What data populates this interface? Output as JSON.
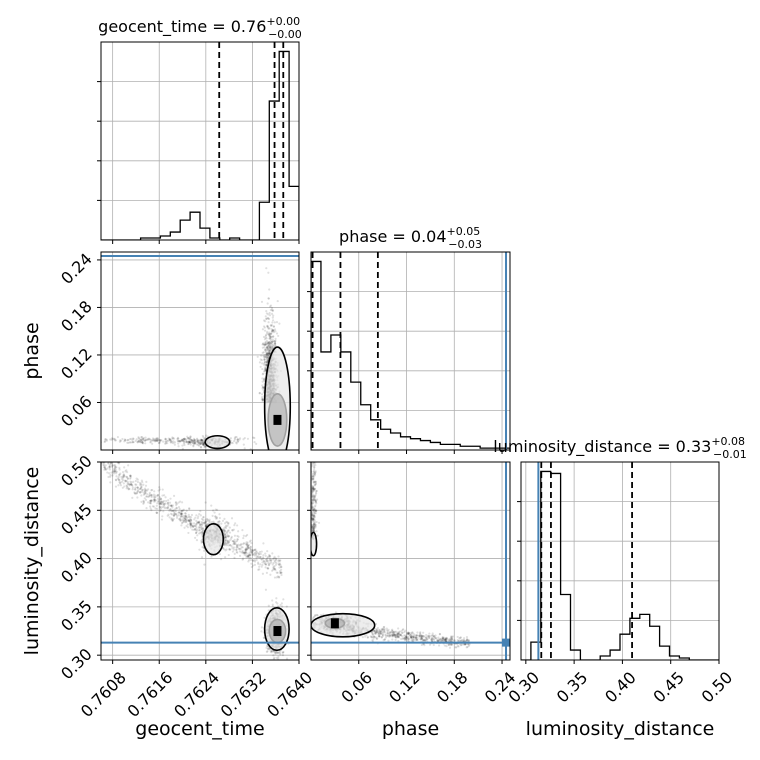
{
  "chart_data": {
    "type": "corner",
    "parameters": [
      {
        "name": "geocent_time",
        "range": [
          0.7606,
          0.764
        ],
        "ticks": [
          0.7608,
          0.7616,
          0.7624,
          0.7632,
          0.764
        ],
        "tick_labels": [
          "0.7608",
          "0.7616",
          "0.7624",
          "0.7632",
          "0.7640"
        ],
        "title": {
          "prefix": "geocent_time = ",
          "value": "0.76",
          "plus": "+0.00",
          "minus": "−0.00"
        },
        "quantiles": [
          0.76263,
          0.76358,
          0.76373
        ],
        "hist_edges_start": 0.7606,
        "hist_bin_width": 0.00017,
        "hist_counts": [
          0,
          0,
          0,
          0,
          1,
          1,
          2,
          4,
          10,
          14,
          6,
          1,
          0,
          1,
          0,
          0,
          19,
          70,
          95,
          27
        ]
      },
      {
        "name": "phase",
        "range": [
          0.0,
          0.25
        ],
        "ticks": [
          0.06,
          0.12,
          0.18,
          0.24
        ],
        "tick_labels": [
          "0.06",
          "0.12",
          "0.18",
          "0.24"
        ],
        "title": {
          "prefix": "phase = ",
          "value": "0.04",
          "plus": "+0.05",
          "minus": "−0.03"
        },
        "quantiles": [
          0.002,
          0.037,
          0.084
        ],
        "truth": 0.245,
        "hist_edges_start": 0.0,
        "hist_bin_width": 0.0125,
        "hist_counts": [
          100,
          52,
          61,
          52,
          36,
          24,
          16,
          11,
          9,
          7,
          6,
          5,
          4,
          3,
          3,
          2,
          2,
          1,
          1,
          1
        ]
      },
      {
        "name": "luminosity_distance",
        "range": [
          0.295,
          0.5
        ],
        "ticks": [
          0.3,
          0.35,
          0.4,
          0.45,
          0.5
        ],
        "tick_labels": [
          "0.30",
          "0.35",
          "0.40",
          "0.45",
          "0.50"
        ],
        "title": {
          "prefix": "luminosity_distance = ",
          "value": "0.33",
          "plus": "+0.08",
          "minus": "−0.01"
        },
        "quantiles": [
          0.316,
          0.326,
          0.41
        ],
        "truth": 0.313,
        "hist_edges_start": 0.295,
        "hist_bin_width": 0.01025,
        "hist_counts": [
          0,
          9,
          95,
          94,
          33,
          5,
          0,
          0,
          2,
          5,
          13,
          21,
          23,
          17,
          7,
          2,
          1,
          0,
          0,
          0
        ]
      }
    ],
    "scatter_2d": [
      {
        "x": "geocent_time",
        "y": "phase",
        "clusters": [
          {
            "cx": 0.7635,
            "cy": 0.06,
            "sx": 6e-05,
            "sy": 0.05,
            "n": 900
          },
          {
            "cx": 0.76245,
            "cy": 0.01,
            "sx": 0.0003,
            "sy": 0.003,
            "n": 250
          },
          {
            "cx": 0.7615,
            "cy": 0.012,
            "sx": 0.0006,
            "sy": 0.002,
            "n": 200
          }
        ],
        "contours": [
          {
            "cx": 0.76363,
            "cy": 0.038,
            "rx": 0.00016,
            "ry": 0.033
          },
          {
            "cx": 0.76363,
            "cy": 0.055,
            "rx": 0.00022,
            "ry": 0.075
          },
          {
            "cx": 0.7626,
            "cy": 0.01,
            "rx": 0.00021,
            "ry": 0.008
          }
        ]
      },
      {
        "x": "geocent_time",
        "y": "luminosity_distance",
        "clusters": [
          {
            "cx": 0.7636,
            "cy": 0.325,
            "sx": 8e-05,
            "sy": 0.012,
            "n": 700
          },
          {
            "cx": 0.76255,
            "cy": 0.425,
            "sx": 0.00015,
            "sy": 0.01,
            "n": 300
          }
        ],
        "band": {
          "x0": 0.7606,
          "y0": 0.505,
          "x1": 0.7637,
          "y1": 0.39,
          "n": 900,
          "spread": 0.006
        },
        "contours": [
          {
            "cx": 0.76363,
            "cy": 0.325,
            "rx": 0.00014,
            "ry": 0.012
          },
          {
            "cx": 0.76362,
            "cy": 0.327,
            "rx": 0.00021,
            "ry": 0.022
          },
          {
            "cx": 0.76253,
            "cy": 0.42,
            "rx": 0.00017,
            "ry": 0.016
          }
        ]
      },
      {
        "x": "phase",
        "y": "luminosity_distance",
        "clusters": [
          {
            "cx": 0.03,
            "cy": 0.333,
            "sx": 0.015,
            "sy": 0.004,
            "n": 500
          },
          {
            "cx": 0.003,
            "cy": 0.42,
            "sx": 0.002,
            "sy": 0.05,
            "n": 300
          }
        ],
        "band": {
          "x0": 0.02,
          "y0": 0.33,
          "x1": 0.2,
          "y1": 0.313,
          "n": 700,
          "spread": 0.003
        },
        "contours": [
          {
            "cx": 0.03,
            "cy": 0.333,
            "rx": 0.012,
            "ry": 0.005
          },
          {
            "cx": 0.04,
            "cy": 0.331,
            "rx": 0.04,
            "ry": 0.012
          },
          {
            "cx": 0.003,
            "cy": 0.415,
            "rx": 0.004,
            "ry": 0.012
          }
        ]
      }
    ],
    "truths": {
      "phase": 0.245,
      "luminosity_distance": 0.313
    },
    "grid": true,
    "colors": {
      "hist": "#000000",
      "truth": "#4682b4",
      "points": "#000000",
      "grid": "#b0b0b0"
    }
  }
}
